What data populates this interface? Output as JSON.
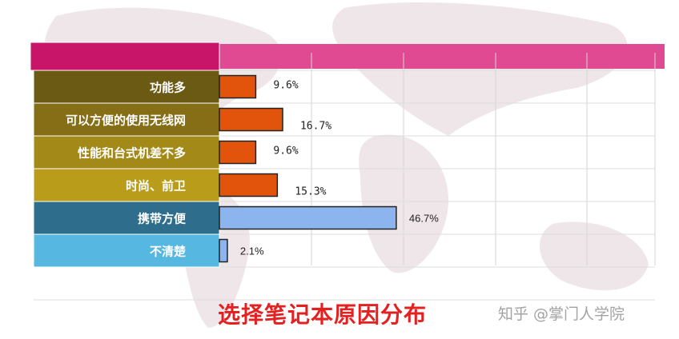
{
  "chart_data": {
    "type": "bar",
    "orientation": "horizontal",
    "categories": [
      "功能多",
      "可以方便的使用无线网",
      "性能和台式机差不多",
      "时尚、前卫",
      "携带方便",
      "不清楚"
    ],
    "values": [
      9.6,
      16.7,
      9.6,
      15.3,
      46.7,
      2.1
    ],
    "value_labels": [
      "9.6%",
      "16.7%",
      "9.6%",
      "15.3%",
      "46.7%",
      "2.1%"
    ],
    "unit": "%",
    "title": "选择笔记本原因分布",
    "xlim": [
      0,
      100
    ],
    "grid": true,
    "row_colors": [
      "#6b5a14",
      "#866e16",
      "#a38a18",
      "#b99c1a",
      "#2e6e8c",
      "#56b8e0"
    ],
    "bar_colors": [
      "#e2540c",
      "#e2540c",
      "#e2540c",
      "#e2540c",
      "#8cb4ee",
      "#8cb4ee"
    ],
    "header_color": "#c8156a",
    "header_band_color": "#df4a93"
  },
  "watermark": "知乎 @掌门人学院"
}
